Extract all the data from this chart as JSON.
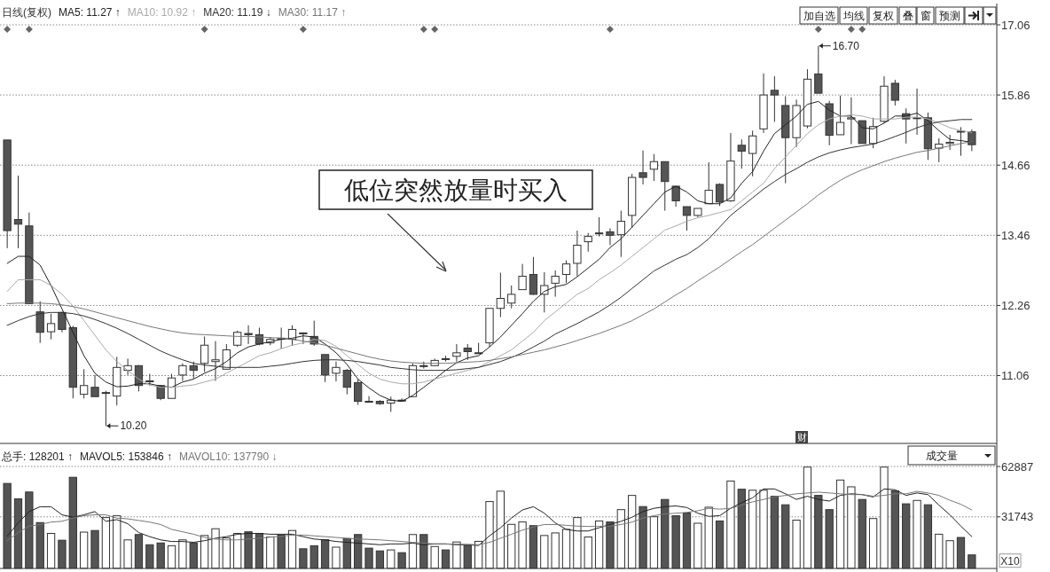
{
  "chart_data": [
    {
      "type": "candlestick",
      "title": "日线(复权)",
      "colors": [
        "#555555",
        "#555555",
        "#555555",
        "#555555",
        "#ffffff",
        "#555555",
        "#555555",
        "#ffffff",
        "#555555",
        "#555555",
        "#ffffff",
        "#ffffff",
        "#555555",
        "#555555",
        "#555555",
        "#ffffff",
        "#ffffff",
        "#555555",
        "#ffffff",
        "#ffffff",
        "#ffffff",
        "#ffffff",
        "#555555",
        "#555555",
        "#ffffff",
        "#555555",
        "#ffffff",
        "#555555",
        "#555555",
        "#555555",
        "#ffffff",
        "#555555",
        "#555555",
        "#555555",
        "#555555",
        "#ffffff",
        "#555555",
        "#ffffff",
        "#555555",
        "#ffffff",
        "#555555",
        "#ffffff",
        "#555555",
        "#555555",
        "#ffffff",
        "#ffffff",
        "#ffffff",
        "#ffffff",
        "#555555",
        "#ffffff",
        "#ffffff",
        "#ffffff",
        "#ffffff",
        "#ffffff",
        "#555555",
        "#555555",
        "#ffffff",
        "#ffffff",
        "#555555",
        "#ffffff",
        "#555555",
        "#555555",
        "#555555",
        "#ffffff",
        "#ffffff",
        "#555555",
        "#ffffff",
        "#555555",
        "#ffffff",
        "#ffffff",
        "#555555",
        "#555555",
        "#ffffff",
        "#ffffff",
        "#555555",
        "#555555",
        "#ffffff",
        "#ffffff",
        "#555555",
        "#ffffff",
        "#ffffff",
        "#555555",
        "#555555",
        "#555555",
        "#555555",
        "#ffffff",
        "#ffffff",
        "#555555",
        "#555555"
      ],
      "legend": "top left",
      "grid": "y",
      "ylim": [
        9.9,
        17.06
      ],
      "yticks": [
        11.06,
        12.26,
        13.46,
        14.66,
        15.86,
        17.06
      ],
      "categories": [
        null,
        null,
        null,
        null,
        null,
        null,
        null,
        null,
        null,
        null,
        null,
        null,
        null,
        null,
        null,
        null,
        null,
        null,
        null,
        null,
        null,
        null,
        null,
        null,
        null,
        null,
        null,
        null,
        null,
        null,
        null,
        null,
        null,
        null,
        null,
        null,
        null,
        null,
        null,
        null,
        null,
        null,
        null,
        null,
        null,
        null,
        null,
        null,
        null,
        null,
        null,
        null,
        null,
        null,
        null,
        null,
        null,
        null,
        null,
        null,
        null,
        null,
        null,
        null,
        null,
        null,
        null,
        null,
        null,
        null,
        null,
        null,
        null,
        null,
        null,
        null,
        null,
        null,
        null,
        null,
        null,
        null,
        null,
        null,
        null,
        null,
        null,
        null,
        null
      ],
      "ohlc": [
        [
          15.09,
          15.09,
          13.24,
          13.54
        ],
        [
          13.73,
          14.48,
          13.24,
          13.65
        ],
        [
          13.62,
          13.85,
          12.29,
          12.29
        ],
        [
          12.15,
          12.33,
          11.62,
          11.8
        ],
        [
          11.81,
          12.12,
          11.68,
          11.95
        ],
        [
          12.14,
          12.15,
          11.8,
          11.85
        ],
        [
          11.88,
          11.91,
          10.67,
          10.86
        ],
        [
          10.74,
          11.17,
          10.67,
          10.89
        ],
        [
          10.86,
          11.07,
          10.7,
          10.7
        ],
        [
          10.77,
          10.8,
          10.2,
          10.77
        ],
        [
          10.71,
          11.38,
          10.55,
          11.2
        ],
        [
          11.15,
          11.35,
          11.07,
          11.23
        ],
        [
          11.23,
          11.24,
          10.79,
          10.89
        ],
        [
          10.97,
          11.09,
          10.89,
          10.97
        ],
        [
          10.89,
          10.89,
          10.64,
          10.67
        ],
        [
          10.67,
          11.09,
          10.67,
          11.02
        ],
        [
          11.07,
          11.27,
          10.97,
          11.23
        ],
        [
          11.23,
          11.3,
          11.01,
          11.15
        ],
        [
          11.27,
          11.73,
          11.12,
          11.58
        ],
        [
          11.3,
          11.65,
          10.97,
          11.33
        ],
        [
          11.17,
          11.6,
          11.17,
          11.5
        ],
        [
          11.58,
          11.83,
          11.55,
          11.8
        ],
        [
          11.78,
          11.92,
          11.6,
          11.76
        ],
        [
          11.76,
          11.88,
          11.58,
          11.6
        ],
        [
          11.62,
          11.72,
          11.58,
          11.68
        ],
        [
          11.7,
          11.88,
          11.52,
          11.7
        ],
        [
          11.68,
          11.92,
          11.57,
          11.85
        ],
        [
          11.79,
          11.8,
          11.6,
          11.79
        ],
        [
          11.73,
          12.0,
          11.57,
          11.6
        ],
        [
          11.42,
          11.42,
          10.95,
          11.07
        ],
        [
          11.1,
          11.3,
          10.96,
          11.2
        ],
        [
          11.15,
          11.17,
          10.74,
          10.86
        ],
        [
          10.94,
          11.0,
          10.56,
          10.62
        ],
        [
          10.62,
          10.71,
          10.6,
          10.62
        ],
        [
          10.62,
          10.64,
          10.56,
          10.58
        ],
        [
          10.59,
          10.7,
          10.44,
          10.64
        ],
        [
          10.64,
          10.67,
          10.61,
          10.64
        ],
        [
          10.7,
          11.27,
          10.7,
          11.23
        ],
        [
          11.23,
          11.3,
          11.18,
          11.23
        ],
        [
          11.23,
          11.35,
          11.22,
          11.32
        ],
        [
          11.35,
          11.4,
          11.3,
          11.35
        ],
        [
          11.39,
          11.6,
          11.3,
          11.45
        ],
        [
          11.53,
          11.6,
          11.33,
          11.47
        ],
        [
          11.45,
          11.62,
          11.44,
          11.45
        ],
        [
          11.62,
          12.21,
          11.55,
          12.21
        ],
        [
          12.21,
          12.82,
          12.06,
          12.38
        ],
        [
          12.3,
          12.6,
          12.21,
          12.45
        ],
        [
          12.53,
          12.97,
          12.53,
          12.76
        ],
        [
          12.79,
          13.09,
          12.44,
          12.45
        ],
        [
          12.45,
          12.83,
          12.14,
          12.6
        ],
        [
          12.64,
          12.86,
          12.41,
          12.76
        ],
        [
          12.79,
          13.03,
          12.64,
          12.97
        ],
        [
          12.98,
          13.54,
          12.76,
          13.29
        ],
        [
          13.35,
          13.5,
          13.18,
          13.44
        ],
        [
          13.5,
          13.77,
          13.44,
          13.5
        ],
        [
          13.52,
          13.58,
          13.29,
          13.46
        ],
        [
          13.47,
          13.88,
          13.09,
          13.7
        ],
        [
          13.8,
          14.51,
          13.59,
          14.45
        ],
        [
          14.53,
          14.91,
          14.33,
          14.45
        ],
        [
          14.59,
          14.85,
          14.39,
          14.72
        ],
        [
          14.72,
          14.72,
          13.88,
          14.38
        ],
        [
          14.3,
          14.3,
          13.95,
          14.05
        ],
        [
          13.95,
          13.95,
          13.54,
          13.8
        ],
        [
          13.8,
          13.92,
          13.77,
          13.92
        ],
        [
          14.0,
          14.71,
          14.0,
          14.23
        ],
        [
          14.33,
          14.35,
          13.96,
          14.03
        ],
        [
          14.05,
          15.21,
          14.03,
          14.73
        ],
        [
          15.0,
          15.1,
          14.6,
          14.9
        ],
        [
          14.86,
          15.25,
          14.47,
          15.16
        ],
        [
          15.28,
          16.23,
          15.21,
          15.86
        ],
        [
          15.94,
          16.18,
          15.4,
          15.86
        ],
        [
          15.68,
          15.84,
          14.35,
          15.13
        ],
        [
          15.13,
          15.78,
          14.97,
          15.68
        ],
        [
          15.33,
          16.3,
          15.29,
          16.13
        ],
        [
          16.22,
          16.7,
          15.89,
          15.89
        ],
        [
          15.71,
          15.76,
          15.0,
          15.17
        ],
        [
          15.18,
          15.85,
          15.18,
          15.39
        ],
        [
          15.45,
          15.82,
          15.02,
          15.47
        ],
        [
          15.42,
          15.42,
          15.03,
          15.03
        ],
        [
          15.03,
          15.47,
          14.95,
          15.32
        ],
        [
          15.41,
          16.18,
          15.38,
          16.01
        ],
        [
          16.06,
          16.12,
          15.68,
          15.77
        ],
        [
          15.54,
          15.63,
          15.03,
          15.45
        ],
        [
          15.47,
          15.97,
          15.18,
          15.47
        ],
        [
          15.47,
          15.56,
          14.75,
          14.94
        ],
        [
          14.95,
          15.12,
          14.71,
          15.02
        ],
        [
          15.03,
          15.18,
          14.92,
          15.05
        ],
        [
          15.24,
          15.31,
          14.82,
          15.24
        ],
        [
          15.23,
          15.27,
          14.9,
          15.01
        ]
      ],
      "series": [
        {
          "type": "line",
          "name": "MA5: 11.27 ↑",
          "color": "#222222",
          "values": [
            12.98,
            13.1,
            13.1,
            12.95,
            12.6,
            12.2,
            11.8,
            11.4,
            11.1,
            10.95,
            10.87,
            10.88,
            10.92,
            10.92,
            10.88,
            10.86,
            10.95,
            11.0,
            11.1,
            11.18,
            11.3,
            11.45,
            11.55,
            11.6,
            11.64,
            11.68,
            11.7,
            11.74,
            11.72,
            11.6,
            11.45,
            11.25,
            11.0,
            10.85,
            10.72,
            10.64,
            10.62,
            10.72,
            10.86,
            11.0,
            11.15,
            11.28,
            11.36,
            11.4,
            11.55,
            11.72,
            11.92,
            12.12,
            12.33,
            12.5,
            12.58,
            12.62,
            12.75,
            12.9,
            13.05,
            13.25,
            13.4,
            13.6,
            13.8,
            14.0,
            14.2,
            14.3,
            14.2,
            14.05,
            14.0,
            14.0,
            14.1,
            14.35,
            14.55,
            14.9,
            15.2,
            15.35,
            15.5,
            15.7,
            15.75,
            15.6,
            15.5,
            15.5,
            15.3,
            15.28,
            15.38,
            15.5,
            15.5,
            15.55,
            15.42,
            15.25,
            15.1,
            15.08,
            15.05
          ]
        },
        {
          "type": "line",
          "name": "MA10: 10.92 ↑",
          "color": "#aaaaaa",
          "values": [
            12.5,
            12.7,
            12.7,
            12.7,
            12.6,
            12.45,
            12.25,
            12.0,
            11.75,
            11.5,
            11.3,
            11.15,
            11.0,
            10.9,
            10.86,
            10.86,
            10.88,
            10.9,
            10.95,
            11.0,
            11.1,
            11.2,
            11.3,
            11.4,
            11.45,
            11.52,
            11.58,
            11.62,
            11.68,
            11.66,
            11.56,
            11.4,
            11.25,
            11.1,
            11.0,
            10.95,
            10.92,
            10.92,
            10.95,
            11.0,
            11.05,
            11.1,
            11.15,
            11.2,
            11.3,
            11.4,
            11.5,
            11.65,
            11.8,
            12.0,
            12.15,
            12.3,
            12.45,
            12.55,
            12.7,
            12.82,
            12.95,
            13.1,
            13.25,
            13.4,
            13.55,
            13.62,
            13.7,
            13.76,
            13.8,
            13.85,
            13.9,
            14.05,
            14.2,
            14.35,
            14.6,
            14.8,
            15.0,
            15.2,
            15.35,
            15.45,
            15.5,
            15.52,
            15.5,
            15.45,
            15.45,
            15.45,
            15.48,
            15.48,
            15.45,
            15.38,
            15.3,
            15.25,
            15.22
          ]
        },
        {
          "type": "line",
          "name": "MA20: 11.19 ↓",
          "color": "#333333",
          "values": [
            11.92,
            12.0,
            12.07,
            12.12,
            12.14,
            12.14,
            12.12,
            12.08,
            12.02,
            11.95,
            11.87,
            11.78,
            11.68,
            11.58,
            11.48,
            11.4,
            11.33,
            11.27,
            11.24,
            11.22,
            11.2,
            11.2,
            11.2,
            11.2,
            11.22,
            11.24,
            11.27,
            11.3,
            11.32,
            11.33,
            11.33,
            11.32,
            11.3,
            11.27,
            11.24,
            11.2,
            11.18,
            11.16,
            11.15,
            11.15,
            11.15,
            11.16,
            11.18,
            11.2,
            11.25,
            11.3,
            11.37,
            11.45,
            11.55,
            11.65,
            11.77,
            11.86,
            11.95,
            12.05,
            12.15,
            12.27,
            12.4,
            12.55,
            12.7,
            12.85,
            12.95,
            13.05,
            13.13,
            13.25,
            13.4,
            13.6,
            13.8,
            13.95,
            14.1,
            14.25,
            14.38,
            14.5,
            14.6,
            14.71,
            14.8,
            14.87,
            14.92,
            14.96,
            14.99,
            15.02,
            15.08,
            15.15,
            15.22,
            15.3,
            15.36,
            15.4,
            15.42,
            15.44,
            15.44
          ]
        },
        {
          "type": "line",
          "name": "MA30: 11.17 ↑",
          "color": "#777777",
          "values": [
            12.29,
            12.3,
            12.3,
            12.3,
            12.29,
            12.27,
            12.24,
            12.2,
            12.15,
            12.1,
            12.05,
            12.0,
            11.95,
            11.9,
            11.86,
            11.82,
            11.79,
            11.77,
            11.76,
            11.75,
            11.74,
            11.73,
            11.73,
            11.72,
            11.71,
            11.7,
            11.68,
            11.65,
            11.62,
            11.58,
            11.53,
            11.48,
            11.43,
            11.38,
            11.34,
            11.31,
            11.29,
            11.28,
            11.27,
            11.27,
            11.27,
            11.28,
            11.29,
            11.3,
            11.32,
            11.35,
            11.38,
            11.42,
            11.46,
            11.5,
            11.55,
            11.6,
            11.66,
            11.72,
            11.78,
            11.85,
            11.92,
            12.0,
            12.1,
            12.2,
            12.32,
            12.44,
            12.55,
            12.68,
            12.8,
            12.92,
            13.05,
            13.18,
            13.3,
            13.44,
            13.58,
            13.72,
            13.86,
            14.0,
            14.15,
            14.28,
            14.4,
            14.5,
            14.58,
            14.65,
            14.72,
            14.78,
            14.83,
            14.88,
            14.91,
            14.95,
            14.99,
            15.03,
            15.06
          ]
        }
      ],
      "annotations": [
        "低位突然放量时买入",
        "加自选",
        "均线",
        "复权",
        "叠",
        "窗",
        "预测",
        "财",
        "16.70",
        "10.20"
      ]
    },
    {
      "type": "bar",
      "legend": "top left",
      "grid": "y",
      "ylim": [
        0,
        62887
      ],
      "yticks": [
        31743,
        62887
      ],
      "ylabel": "X10",
      "categories": [
        null,
        null,
        null,
        null,
        null,
        null,
        null,
        null,
        null,
        null,
        null,
        null,
        null,
        null,
        null,
        null,
        null,
        null,
        null,
        null,
        null,
        null,
        null,
        null,
        null,
        null,
        null,
        null,
        null,
        null,
        null,
        null,
        null,
        null,
        null,
        null,
        null,
        null,
        null,
        null,
        null,
        null,
        null,
        null,
        null,
        null,
        null,
        null,
        null,
        null,
        null,
        null,
        null,
        null,
        null,
        null,
        null,
        null,
        null,
        null,
        null,
        null,
        null,
        null,
        null,
        null,
        null,
        null,
        null,
        null,
        null,
        null,
        null,
        null,
        null,
        null,
        null,
        null,
        null,
        null,
        null,
        null,
        null,
        null,
        null,
        null,
        null,
        null,
        null
      ],
      "series": [
        {
          "name": "总手: 128201 ↑",
          "values": [
            52400,
            42900,
            47100,
            28200,
            21500,
            17300,
            56200,
            22300,
            23300,
            31300,
            32400,
            17500,
            20800,
            14500,
            15600,
            13900,
            17500,
            15600,
            20200,
            24400,
            18700,
            21500,
            22500,
            21500,
            19300,
            20400,
            23300,
            12000,
            13900,
            17600,
            13000,
            18300,
            20800,
            12400,
            10700,
            11300,
            9600,
            20800,
            20800,
            13400,
            11300,
            16200,
            13900,
            16600,
            41200,
            47600,
            27100,
            28600,
            26300,
            20200,
            21800,
            24000,
            31300,
            19300,
            29200,
            28600,
            36200,
            45000,
            38100,
            31800,
            42500,
            32400,
            34100,
            27800,
            37700,
            29200,
            53900,
            48800,
            48200,
            48200,
            44400,
            39200,
            29700,
            62500,
            45000,
            36200,
            54500,
            50300,
            42500,
            30700,
            62500,
            47800,
            39800,
            41900,
            39200,
            21000,
            17000,
            19000,
            8200
          ],
          "colors": [
            "#555555",
            "#555555",
            "#555555",
            "#555555",
            "#ffffff",
            "#555555",
            "#555555",
            "#ffffff",
            "#555555",
            "#ffffff",
            "#ffffff",
            "#ffffff",
            "#555555",
            "#555555",
            "#555555",
            "#ffffff",
            "#ffffff",
            "#555555",
            "#ffffff",
            "#ffffff",
            "#ffffff",
            "#ffffff",
            "#555555",
            "#555555",
            "#ffffff",
            "#555555",
            "#ffffff",
            "#555555",
            "#555555",
            "#555555",
            "#ffffff",
            "#555555",
            "#555555",
            "#555555",
            "#555555",
            "#ffffff",
            "#555555",
            "#ffffff",
            "#555555",
            "#ffffff",
            "#555555",
            "#ffffff",
            "#555555",
            "#ffffff",
            "#ffffff",
            "#ffffff",
            "#ffffff",
            "#ffffff",
            "#555555",
            "#ffffff",
            "#ffffff",
            "#ffffff",
            "#ffffff",
            "#ffffff",
            "#ffffff",
            "#555555",
            "#ffffff",
            "#ffffff",
            "#555555",
            "#ffffff",
            "#555555",
            "#555555",
            "#555555",
            "#ffffff",
            "#ffffff",
            "#555555",
            "#ffffff",
            "#555555",
            "#ffffff",
            "#ffffff",
            "#555555",
            "#555555",
            "#ffffff",
            "#ffffff",
            "#555555",
            "#555555",
            "#ffffff",
            "#ffffff",
            "#555555",
            "#ffffff",
            "#ffffff",
            "#555555",
            "#555555",
            "#ffffff",
            "#555555",
            "#ffffff",
            "#ffffff",
            "#555555",
            "#555555"
          ]
        },
        {
          "type": "line",
          "name": "MAVOL5: 153846 ↑",
          "color": "#222222",
          "values": [
            19800,
            28000,
            35000,
            38000,
            38000,
            33000,
            31500,
            33000,
            35000,
            29000,
            30000,
            27500,
            22000,
            19500,
            17500,
            16500,
            16500,
            16000,
            17000,
            18500,
            19500,
            21000,
            21500,
            21500,
            21000,
            21000,
            21000,
            19500,
            18000,
            17500,
            16500,
            16000,
            15500,
            15000,
            14500,
            15000,
            15000,
            15500,
            14500,
            15000,
            15000,
            14500,
            14500,
            14000,
            20000,
            25000,
            31000,
            36000,
            38000,
            34000,
            28000,
            24000,
            23000,
            23000,
            25000,
            27000,
            29000,
            31500,
            35000,
            37000,
            38000,
            38500,
            37500,
            34000,
            32000,
            32500,
            37000,
            40500,
            43500,
            49000,
            49000,
            46000,
            42500,
            44500,
            42500,
            41500,
            45000,
            46000,
            45500,
            44000,
            49000,
            48500,
            45000,
            46500,
            45500,
            39000,
            33000,
            26000,
            19500
          ]
        },
        {
          "type": "line",
          "name": "MAVOL10: 137790 ↓",
          "color": "#777777",
          "values": [
            17000,
            22000,
            26000,
            27000,
            28500,
            29000,
            31000,
            32500,
            33000,
            33000,
            31000,
            30500,
            29500,
            28500,
            27000,
            24000,
            22500,
            21000,
            19000,
            18000,
            17500,
            17500,
            18000,
            18500,
            19200,
            19800,
            20400,
            20500,
            20000,
            19500,
            19000,
            18500,
            18000,
            17800,
            17500,
            17000,
            16500,
            16000,
            15500,
            15000,
            15000,
            14800,
            14700,
            14500,
            16000,
            18500,
            21000,
            23500,
            25500,
            27000,
            27000,
            26500,
            26000,
            25800,
            25800,
            26000,
            27000,
            28500,
            31000,
            32500,
            33500,
            34000,
            34500,
            35500,
            37000,
            36500,
            37000,
            39000,
            41000,
            42500,
            44000,
            45000,
            46000,
            46500,
            47000,
            46500,
            46000,
            45500,
            45500,
            44500,
            45000,
            46000,
            46000,
            47500,
            46500,
            45000,
            42000,
            39500,
            36000
          ]
        }
      ],
      "annotations": [
        "成交量"
      ]
    }
  ]
}
